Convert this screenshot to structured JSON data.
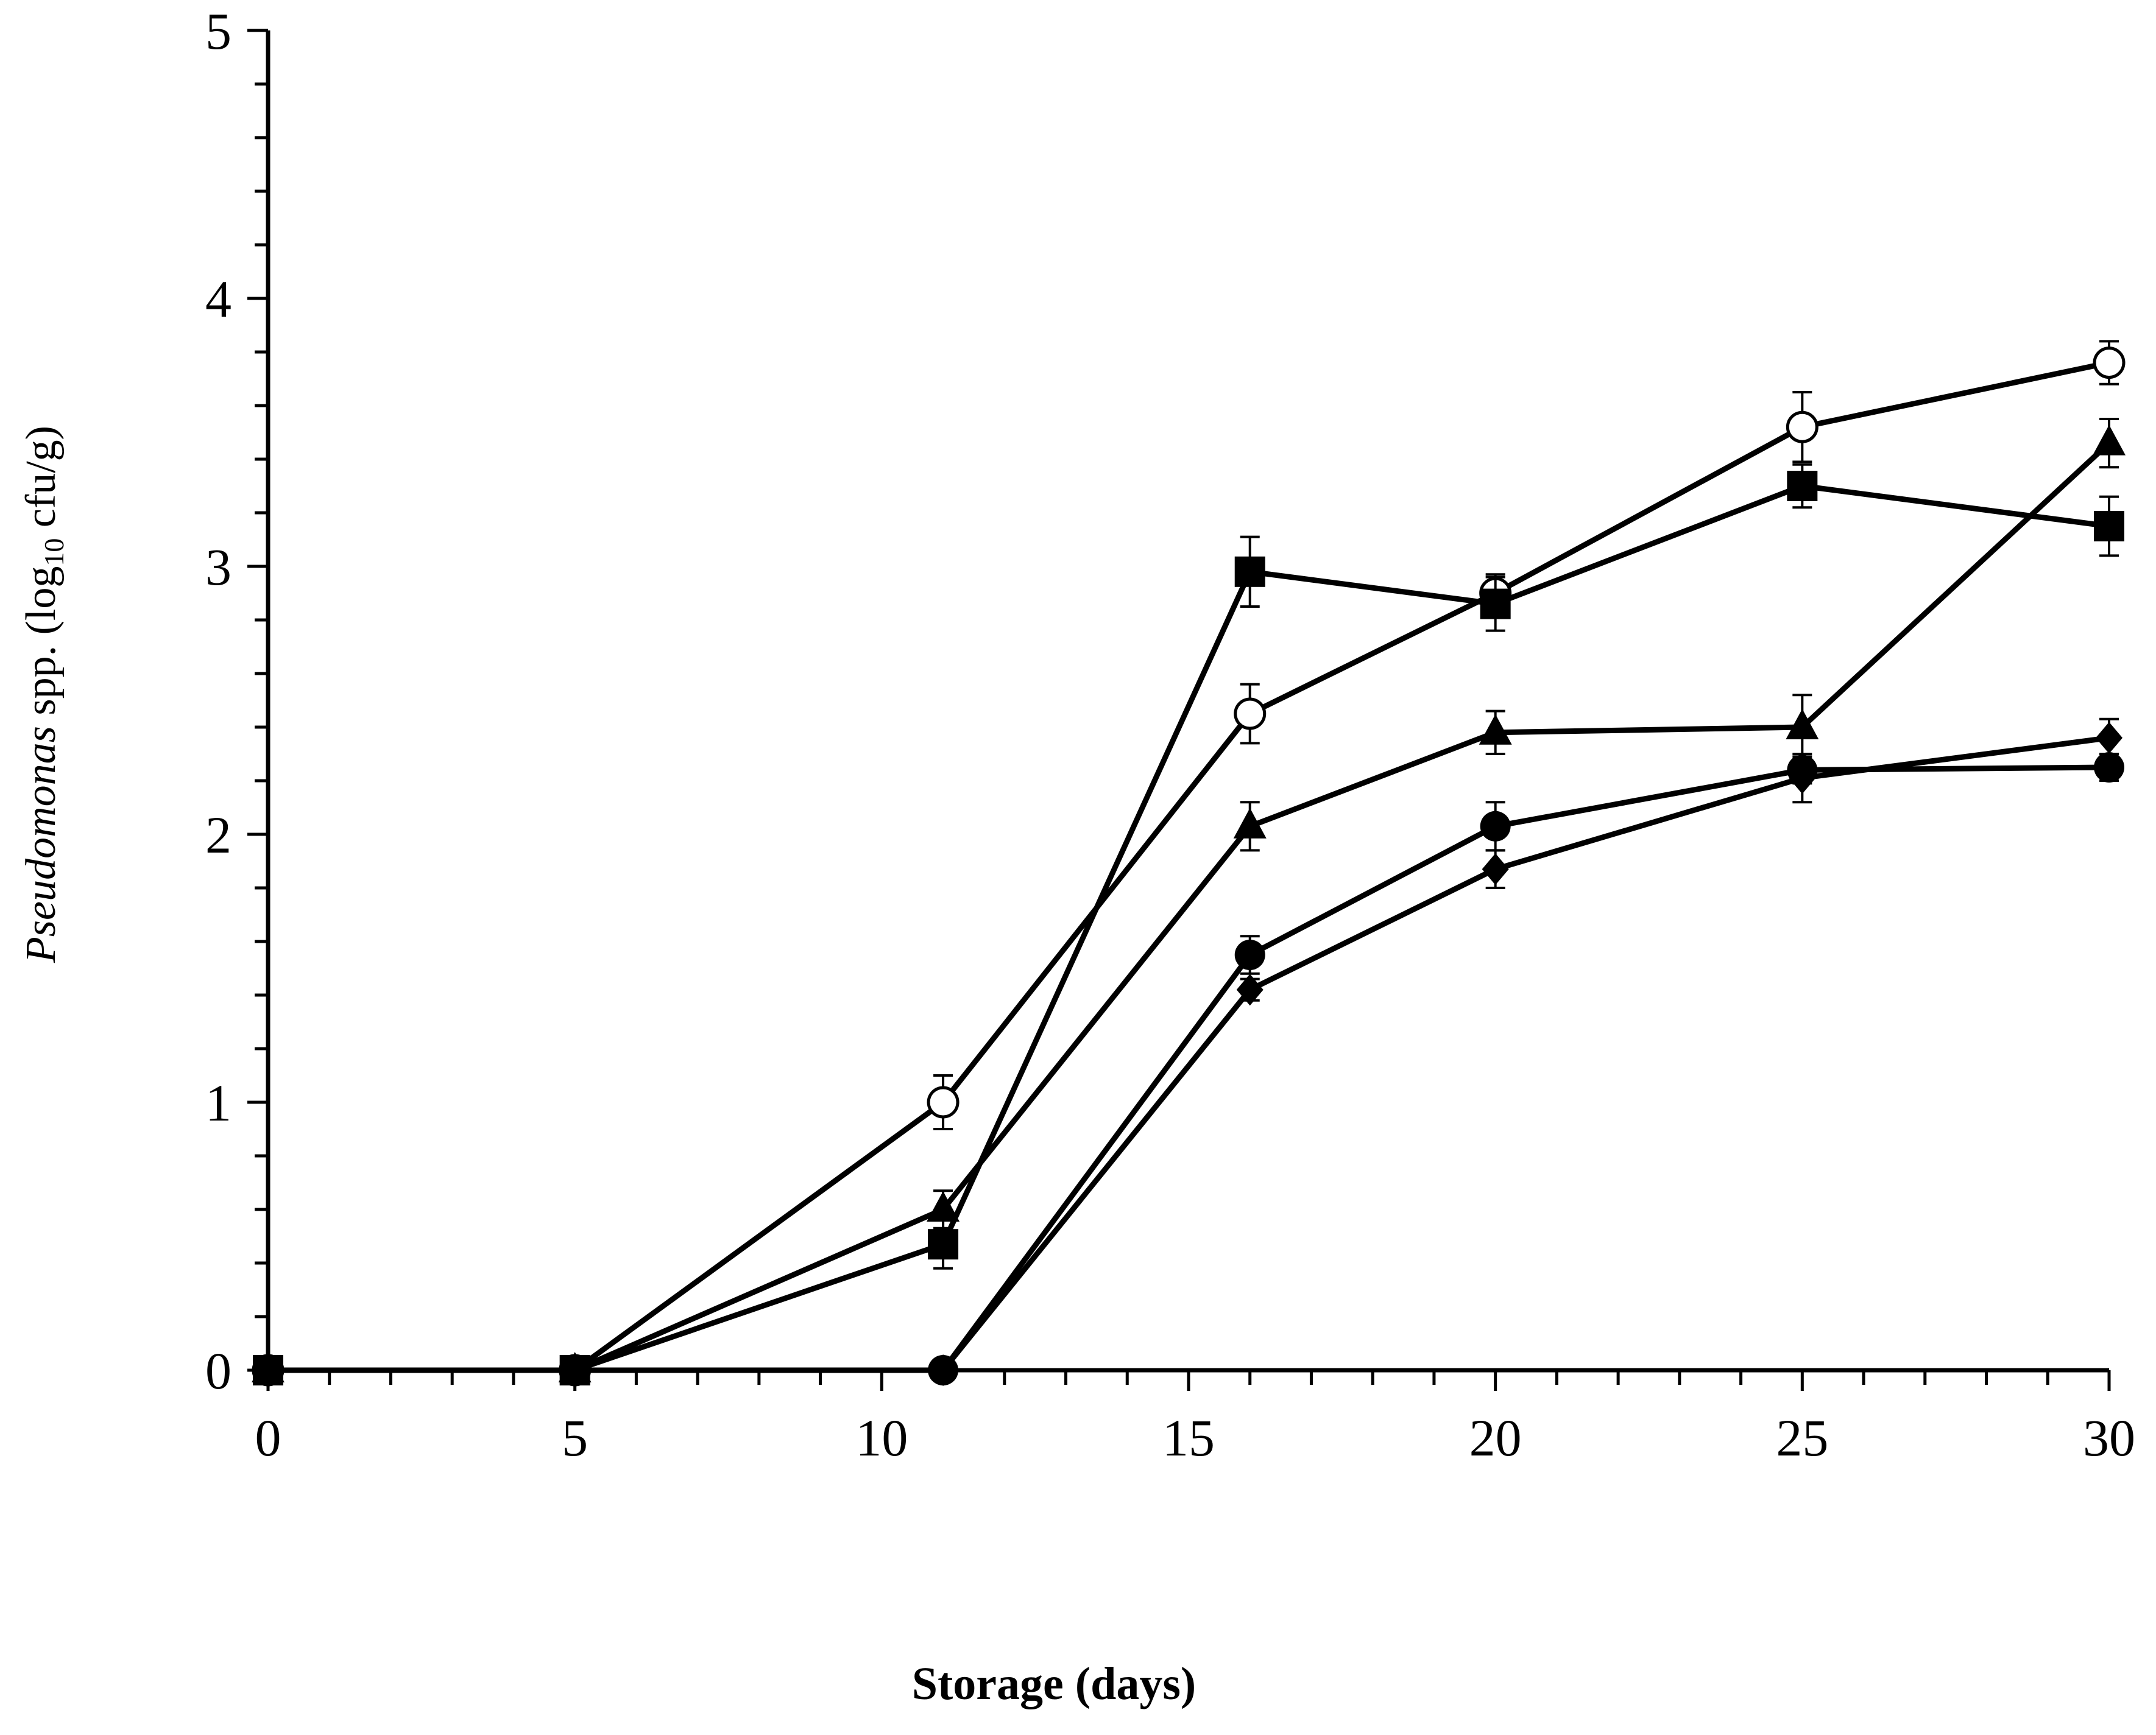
{
  "chart_data": {
    "type": "line",
    "title": "",
    "xlabel": "Storage (days)",
    "ylabel": {
      "italic": "Pseudomonas",
      "text1": " spp. (log",
      "sub": "10",
      "text2": " cfu/g)"
    },
    "xlim": [
      0,
      30
    ],
    "ylim": [
      0,
      5
    ],
    "x_ticks": [
      "0",
      "5",
      "10",
      "15",
      "20",
      "25",
      "30"
    ],
    "y_ticks": [
      "0",
      "1",
      "2",
      "3",
      "4",
      "5"
    ],
    "x_minor_step": 1,
    "y_minor_step": 0.2,
    "grid": false,
    "legend": "none",
    "series": [
      {
        "marker": "open-circle",
        "points": [
          {
            "x": 0,
            "y": 0
          },
          {
            "x": 5,
            "y": 0
          },
          {
            "x": 11,
            "y": 1.0,
            "err": 0.1
          },
          {
            "x": 16,
            "y": 2.45,
            "err": 0.11
          },
          {
            "x": 20,
            "y": 2.9,
            "err": 0.07
          },
          {
            "x": 25,
            "y": 3.52,
            "err": 0.13
          },
          {
            "x": 30,
            "y": 3.76,
            "err": 0.08
          }
        ]
      },
      {
        "marker": "filled-square",
        "points": [
          {
            "x": 0,
            "y": 0
          },
          {
            "x": 5,
            "y": 0
          },
          {
            "x": 11,
            "y": 0.47,
            "err": 0.09
          },
          {
            "x": 16,
            "y": 2.98,
            "err": 0.13
          },
          {
            "x": 20,
            "y": 2.86,
            "err": 0.1
          },
          {
            "x": 25,
            "y": 3.3,
            "err": 0.08
          },
          {
            "x": 30,
            "y": 3.15,
            "err": 0.11
          }
        ]
      },
      {
        "marker": "filled-triangle",
        "points": [
          {
            "x": 0,
            "y": 0
          },
          {
            "x": 5,
            "y": 0
          },
          {
            "x": 11,
            "y": 0.6,
            "err": 0.07
          },
          {
            "x": 16,
            "y": 2.03,
            "err": 0.09
          },
          {
            "x": 20,
            "y": 2.38,
            "err": 0.08
          },
          {
            "x": 25,
            "y": 2.4,
            "err": 0.12
          },
          {
            "x": 30,
            "y": 3.46,
            "err": 0.09
          }
        ]
      },
      {
        "marker": "filled-circle",
        "points": [
          {
            "x": 0,
            "y": 0
          },
          {
            "x": 5,
            "y": 0
          },
          {
            "x": 11,
            "y": 0
          },
          {
            "x": 16,
            "y": 1.55,
            "err": 0.07
          },
          {
            "x": 20,
            "y": 2.03,
            "err": 0.09
          },
          {
            "x": 25,
            "y": 2.24,
            "err": 0.05
          },
          {
            "x": 30,
            "y": 2.25,
            "err": 0.05
          }
        ]
      },
      {
        "marker": "filled-diamond",
        "points": [
          {
            "x": 0,
            "y": 0
          },
          {
            "x": 5,
            "y": 0
          },
          {
            "x": 11,
            "y": 0
          },
          {
            "x": 16,
            "y": 1.42,
            "err": 0.04
          },
          {
            "x": 20,
            "y": 1.87,
            "err": 0.07
          },
          {
            "x": 25,
            "y": 2.21,
            "err": 0.09
          },
          {
            "x": 30,
            "y": 2.36,
            "err": 0.07
          }
        ]
      }
    ]
  }
}
